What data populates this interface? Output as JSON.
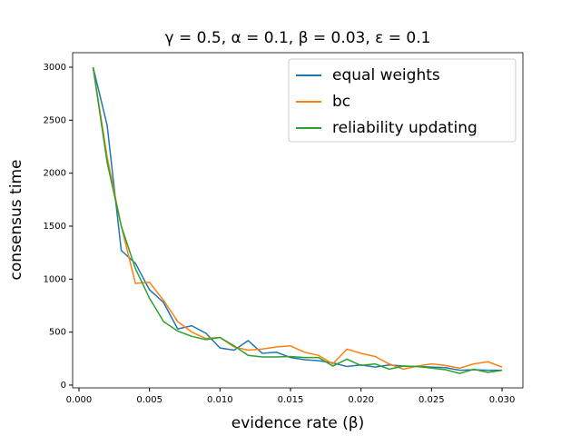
{
  "chart_data": {
    "type": "line",
    "title": "γ = 0.5, α = 0.1, β = 0.03, ε = 0.1",
    "x_label": "evidence rate (β)",
    "y_label": "consensus time",
    "x": [
      0.001,
      0.002,
      0.003,
      0.004,
      0.005,
      0.006,
      0.007,
      0.008,
      0.009,
      0.01,
      0.011,
      0.012,
      0.013,
      0.014,
      0.015,
      0.016,
      0.017,
      0.018,
      0.019,
      0.02,
      0.021,
      0.022,
      0.023,
      0.024,
      0.025,
      0.026,
      0.027,
      0.028,
      0.029,
      0.03
    ],
    "series": [
      {
        "name": "equal weights",
        "color": "#1f77b4",
        "values": [
          3000,
          2450,
          1270,
          1150,
          900,
          780,
          530,
          560,
          490,
          350,
          330,
          420,
          300,
          310,
          260,
          240,
          230,
          210,
          175,
          190,
          170,
          190,
          180,
          175,
          170,
          165,
          140,
          145,
          140,
          140
        ]
      },
      {
        "name": "bc",
        "color": "#ff7f0e",
        "values": [
          3000,
          2150,
          1500,
          960,
          970,
          800,
          600,
          500,
          440,
          450,
          360,
          330,
          340,
          360,
          370,
          310,
          280,
          200,
          340,
          300,
          270,
          200,
          150,
          180,
          200,
          185,
          160,
          200,
          220,
          170
        ]
      },
      {
        "name": "reliability updating",
        "color": "#2ca02c",
        "values": [
          3000,
          2100,
          1500,
          1100,
          820,
          600,
          510,
          460,
          430,
          450,
          370,
          280,
          265,
          265,
          270,
          260,
          260,
          180,
          245,
          185,
          200,
          150,
          180,
          175,
          160,
          145,
          110,
          150,
          120,
          140
        ]
      }
    ],
    "xlim": [
      -0.00045,
      0.03148
    ],
    "ylim": [
      -26,
      3137
    ],
    "xticks": [
      {
        "value": 0,
        "label": "0.000"
      },
      {
        "value": 0.005,
        "label": "0.005"
      },
      {
        "value": 0.01,
        "label": "0.010"
      },
      {
        "value": 0.015,
        "label": "0.015"
      },
      {
        "value": 0.02,
        "label": "0.020"
      },
      {
        "value": 0.025,
        "label": "0.025"
      },
      {
        "value": 0.03,
        "label": "0.030"
      }
    ],
    "yticks": [
      0,
      500,
      1000,
      1500,
      2000,
      2500,
      3000
    ],
    "legend": "upper right"
  }
}
